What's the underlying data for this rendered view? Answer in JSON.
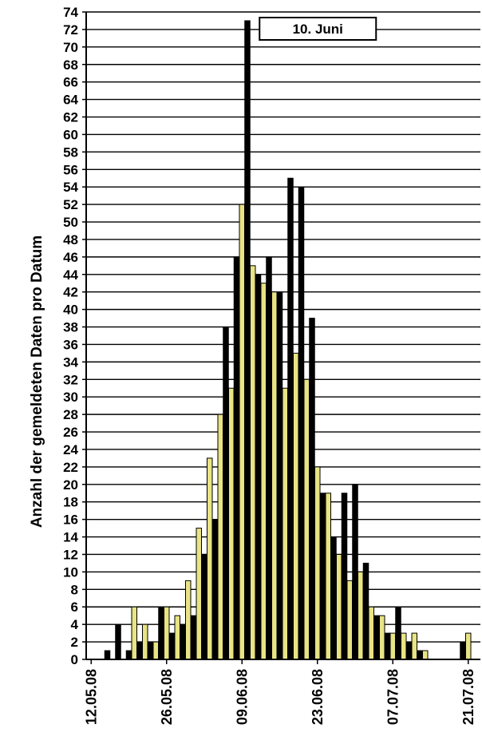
{
  "chart_data": {
    "type": "bar",
    "title": "",
    "xlabel": "",
    "ylabel": "Anzahl der gemeldeten Daten pro Datum",
    "ylim": [
      0,
      74
    ],
    "ytick_step": 2,
    "grid": true,
    "legend": "none",
    "annotation": "10. Juni",
    "annotation_date": "10.06.08",
    "colors": {
      "odd_day": "#E8E384",
      "even_day": "#000000",
      "grid": "#000000",
      "bar_edge": "#000000"
    },
    "x_tick_labels": [
      "12.05.08",
      "26.05.08",
      "09.06.08",
      "23.06.08",
      "07.07.08",
      "21.07.08"
    ],
    "categories": [
      "12.05.08",
      "13.05.08",
      "14.05.08",
      "15.05.08",
      "16.05.08",
      "17.05.08",
      "18.05.08",
      "19.05.08",
      "20.05.08",
      "21.05.08",
      "22.05.08",
      "23.05.08",
      "24.05.08",
      "25.05.08",
      "26.05.08",
      "27.05.08",
      "28.05.08",
      "29.05.08",
      "30.05.08",
      "31.05.08",
      "01.06.08",
      "02.06.08",
      "03.06.08",
      "04.06.08",
      "05.06.08",
      "06.06.08",
      "07.06.08",
      "08.06.08",
      "09.06.08",
      "10.06.08",
      "11.06.08",
      "12.06.08",
      "13.06.08",
      "14.06.08",
      "15.06.08",
      "16.06.08",
      "17.06.08",
      "18.06.08",
      "19.06.08",
      "20.06.08",
      "21.06.08",
      "22.06.08",
      "23.06.08",
      "24.06.08",
      "25.06.08",
      "26.06.08",
      "27.06.08",
      "28.06.08",
      "29.06.08",
      "30.06.08",
      "01.07.08",
      "02.07.08",
      "03.07.08",
      "04.07.08",
      "05.07.08",
      "06.07.08",
      "07.07.08",
      "08.07.08",
      "09.07.08",
      "10.07.08",
      "11.07.08",
      "12.07.08",
      "13.07.08",
      "14.07.08",
      "15.07.08",
      "16.07.08",
      "17.07.08",
      "18.07.08",
      "19.07.08",
      "20.07.08",
      "21.07.08"
    ],
    "values": [
      0,
      0,
      0,
      1,
      0,
      4,
      0,
      1,
      6,
      2,
      4,
      2,
      2,
      6,
      6,
      3,
      5,
      4,
      9,
      5,
      15,
      12,
      23,
      16,
      28,
      38,
      31,
      46,
      52,
      73,
      45,
      44,
      43,
      46,
      42,
      42,
      31,
      55,
      35,
      54,
      32,
      39,
      22,
      19,
      19,
      14,
      12,
      19,
      9,
      20,
      10,
      11,
      6,
      5,
      5,
      3,
      3,
      6,
      3,
      2,
      3,
      1,
      1,
      0,
      0,
      0,
      0,
      0,
      0,
      2,
      3
    ]
  }
}
